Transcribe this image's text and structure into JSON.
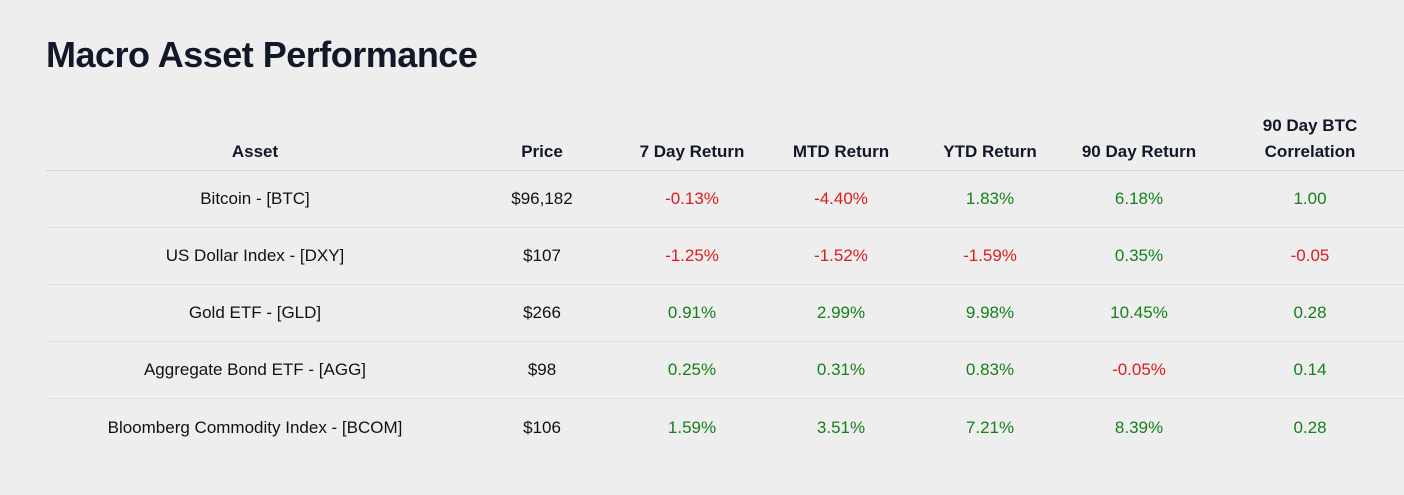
{
  "title": "Macro Asset Performance",
  "colors": {
    "positive": "#15801a",
    "negative": "#e01b1b",
    "background": "#eeeeee"
  },
  "chart_data": {
    "type": "table",
    "title": "Macro Asset Performance",
    "columns": [
      "Asset",
      "Price",
      "7 Day Return",
      "MTD Return",
      "YTD Return",
      "90 Day Return",
      "90 Day BTC\nCorrelation"
    ],
    "rows": [
      [
        "Bitcoin - [BTC]",
        "$96,182",
        "-0.13%",
        "-4.40%",
        "1.83%",
        "6.18%",
        "1.00"
      ],
      [
        "US Dollar Index - [DXY]",
        "$107",
        "-1.25%",
        "-1.52%",
        "-1.59%",
        "0.35%",
        "-0.05"
      ],
      [
        "Gold ETF - [GLD]",
        "$266",
        "0.91%",
        "2.99%",
        "9.98%",
        "10.45%",
        "0.28"
      ],
      [
        "Aggregate Bond ETF - [AGG]",
        "$98",
        "0.25%",
        "0.31%",
        "0.83%",
        "-0.05%",
        "0.14"
      ],
      [
        "Bloomberg Commodity Index - [BCOM]",
        "$106",
        "1.59%",
        "3.51%",
        "7.21%",
        "8.39%",
        "0.28"
      ]
    ]
  }
}
